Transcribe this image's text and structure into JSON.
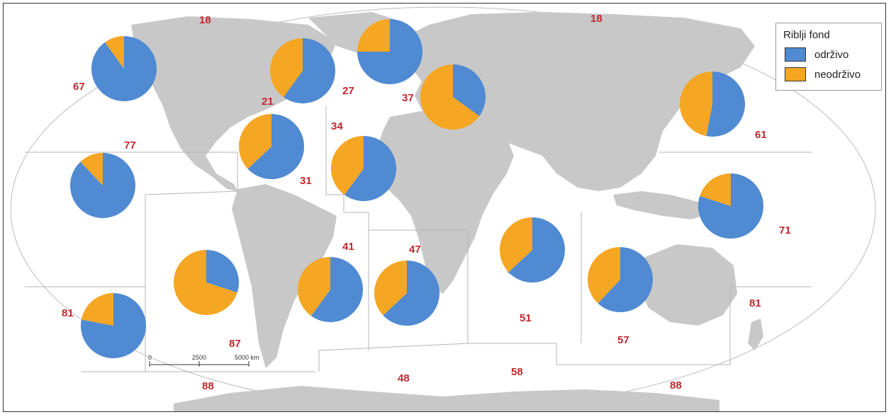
{
  "legend": {
    "title": "Riblji fond",
    "items": [
      {
        "label": "održivo",
        "color": "#4f8ad2"
      },
      {
        "label": "neodrživo",
        "color": "#f5a623"
      }
    ]
  },
  "colors": {
    "land": "#c8c8c8",
    "ocean": "#ffffff",
    "label": "#c0282d",
    "border": "#b5b5b5"
  },
  "scale_bar": {
    "ticks": [
      "0",
      "2500",
      "5000 km"
    ]
  },
  "region_labels": [
    "18",
    "18",
    "67",
    "21",
    "27",
    "37",
    "61",
    "77",
    "34",
    "31",
    "71",
    "41",
    "47",
    "81",
    "51",
    "81",
    "87",
    "57",
    "48",
    "58",
    "88",
    "88"
  ],
  "chart_data": {
    "type": "pie",
    "title": "",
    "series": [
      "održivo",
      "neodrživo"
    ],
    "pies": [
      {
        "region": "67",
        "odrzivo": 0.9,
        "neodrzivo": 0.1
      },
      {
        "region": "21",
        "odrzivo": 0.6,
        "neodrzivo": 0.4
      },
      {
        "region": "27",
        "odrzivo": 0.75,
        "neodrzivo": 0.25
      },
      {
        "region": "37",
        "odrzivo": 0.35,
        "neodrzivo": 0.65
      },
      {
        "region": "61",
        "odrzivo": 0.53,
        "neodrzivo": 0.47
      },
      {
        "region": "31",
        "odrzivo": 0.63,
        "neodrzivo": 0.37
      },
      {
        "region": "34",
        "odrzivo": 0.6,
        "neodrzivo": 0.4
      },
      {
        "region": "77",
        "odrzivo": 0.88,
        "neodrzivo": 0.12
      },
      {
        "region": "71",
        "odrzivo": 0.8,
        "neodrzivo": 0.2
      },
      {
        "region": "87",
        "odrzivo": 0.3,
        "neodrzivo": 0.7
      },
      {
        "region": "41",
        "odrzivo": 0.6,
        "neodrzivo": 0.4
      },
      {
        "region": "47",
        "odrzivo": 0.63,
        "neodrzivo": 0.37
      },
      {
        "region": "51",
        "odrzivo": 0.63,
        "neodrzivo": 0.37
      },
      {
        "region": "57",
        "odrzivo": 0.62,
        "neodrzivo": 0.38
      },
      {
        "region": "81",
        "odrzivo": 0.78,
        "neodrzivo": 0.22
      }
    ]
  }
}
